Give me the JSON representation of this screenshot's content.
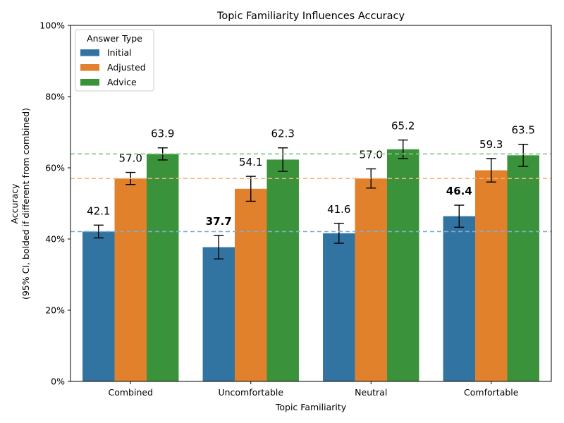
{
  "chart_data": {
    "type": "bar",
    "title": "Topic Familiarity Influences Accuracy",
    "xlabel": "Topic Familiarity",
    "ylabel_lines": [
      "Accuracy",
      "(95% CI, bolded if different from combined)"
    ],
    "ylim": [
      0,
      100
    ],
    "yticks": [
      0,
      20,
      40,
      60,
      80,
      100
    ],
    "ytick_labels": [
      "0%",
      "20%",
      "40%",
      "60%",
      "80%",
      "100%"
    ],
    "grid": false,
    "legend": {
      "title": "Answer Type",
      "placement": "top-left"
    },
    "categories": [
      "Combined",
      "Uncomfortable",
      "Neutral",
      "Comfortable"
    ],
    "series": [
      {
        "name": "Initial",
        "color": "#3274a1",
        "values": [
          42.1,
          37.7,
          41.6,
          46.4
        ],
        "labels": [
          "42.1",
          "37.7",
          "41.6",
          "46.4"
        ],
        "ci_low": [
          40.3,
          34.4,
          38.8,
          43.3
        ],
        "ci_high": [
          43.9,
          41.0,
          44.4,
          49.5
        ],
        "bold": [
          false,
          true,
          false,
          true
        ]
      },
      {
        "name": "Adjusted",
        "color": "#e1812c",
        "values": [
          57.0,
          54.1,
          57.0,
          59.3
        ],
        "labels": [
          "57.0",
          "54.1",
          "57.0",
          "59.3"
        ],
        "ci_low": [
          55.3,
          50.6,
          54.3,
          56.0
        ],
        "ci_high": [
          58.7,
          57.6,
          59.7,
          62.6
        ],
        "bold": [
          false,
          false,
          false,
          false
        ]
      },
      {
        "name": "Advice",
        "color": "#3a923a",
        "values": [
          63.9,
          62.3,
          65.2,
          63.5
        ],
        "labels": [
          "63.9",
          "62.3",
          "65.2",
          "63.5"
        ],
        "ci_low": [
          62.2,
          59.0,
          62.6,
          60.4
        ],
        "ci_high": [
          65.6,
          65.6,
          67.8,
          66.6
        ],
        "bold": [
          false,
          false,
          false,
          false
        ]
      }
    ],
    "reference_lines": [
      {
        "series": "Initial",
        "value": 42.1,
        "color": "#7fadd0"
      },
      {
        "series": "Adjusted",
        "value": 57.0,
        "color": "#f3b37a"
      },
      {
        "series": "Advice",
        "value": 63.9,
        "color": "#86c986"
      }
    ]
  }
}
